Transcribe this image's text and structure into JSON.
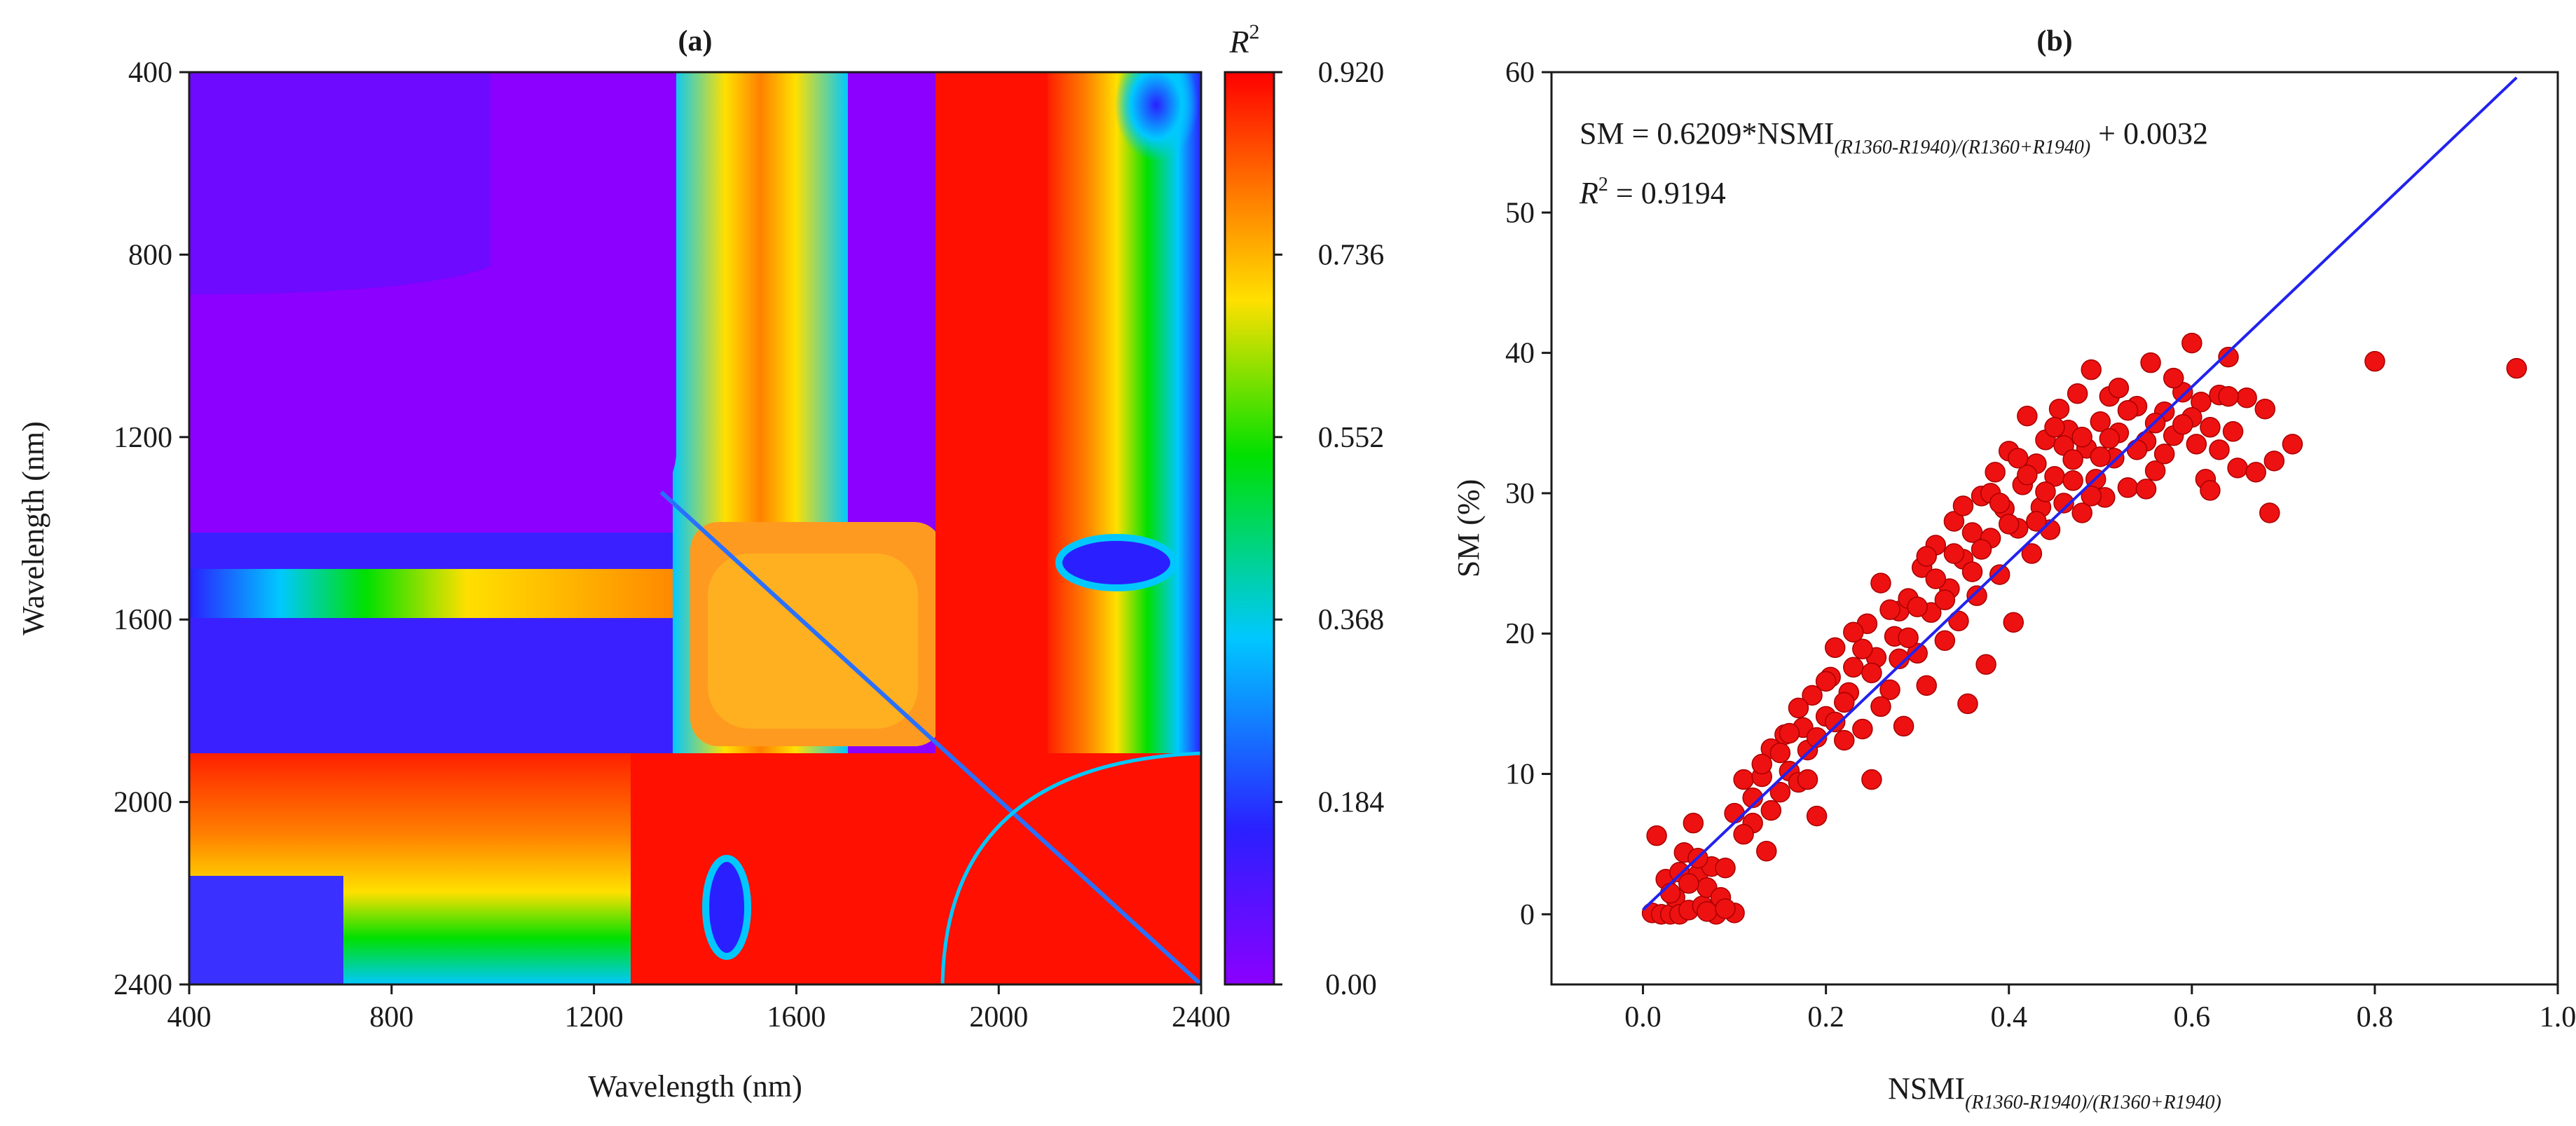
{
  "chart_data": [
    {
      "type": "heatmap",
      "panel_label": "a",
      "title": "(a)",
      "xlabel": "Wavelength (nm)",
      "ylabel": "Wavelength (nm)",
      "xlim": [
        400,
        2400
      ],
      "ylim": [
        2400,
        400
      ],
      "xticks": [
        "400",
        "800",
        "1200",
        "1600",
        "2000",
        "2400"
      ],
      "yticks": [
        "400",
        "800",
        "1200",
        "1600",
        "2000",
        "2400"
      ],
      "colorbar": {
        "label": "R",
        "label_sup": "2",
        "min": 0,
        "max": 0.92,
        "ticks": [
          "0.00",
          "0.184",
          "0.368",
          "0.552",
          "0.736",
          "0.920"
        ],
        "colors": [
          "#8b00ff",
          "#2a20ff",
          "#00c8ff",
          "#00e000",
          "#ffe000",
          "#ff8000",
          "#ff0000"
        ]
      },
      "description_values": {
        "best_band_pair_nm": [
          1360,
          1940
        ],
        "max_r2": 0.92
      }
    },
    {
      "type": "scatter",
      "panel_label": "b",
      "title": "(b)",
      "xlabel": "NSMI",
      "xlabel_sub": "(R1360-R1940)/(R1360+R1940)",
      "ylabel": "SM (%)",
      "xlim": [
        -0.1,
        1.0
      ],
      "ylim": [
        -5,
        60
      ],
      "xticks": [
        "0.0",
        "0.2",
        "0.4",
        "0.6",
        "0.8",
        "1.0"
      ],
      "yticks": [
        "0",
        "10",
        "20",
        "30",
        "40",
        "50",
        "60"
      ],
      "equation_prefix": "SM = 0.6209*NSMI",
      "equation_sub": "(R1360-R1940)/(R1360+R1940)",
      "equation_suffix": " + 0.0032",
      "r2_prefix": "R",
      "r2_sup": "2",
      "r2_value": " = 0.9194",
      "fit": {
        "slope": 62.09,
        "intercept": 0.32,
        "x_range": [
          0.0,
          0.955
        ]
      },
      "point_color": "#ee1111",
      "line_color": "#2222ee",
      "points": [
        [
          0.01,
          0.1
        ],
        [
          0.015,
          5.6
        ],
        [
          0.02,
          0.0
        ],
        [
          0.025,
          2.5
        ],
        [
          0.03,
          0.0
        ],
        [
          0.035,
          1.2
        ],
        [
          0.04,
          3.0
        ],
        [
          0.04,
          0.0
        ],
        [
          0.045,
          4.4
        ],
        [
          0.05,
          0.3
        ],
        [
          0.055,
          6.5
        ],
        [
          0.06,
          2.8
        ],
        [
          0.065,
          0.6
        ],
        [
          0.07,
          1.9
        ],
        [
          0.075,
          3.4
        ],
        [
          0.08,
          0.0
        ],
        [
          0.085,
          1.2
        ],
        [
          0.09,
          3.3
        ],
        [
          0.1,
          0.1
        ],
        [
          0.1,
          7.2
        ],
        [
          0.11,
          9.6
        ],
        [
          0.12,
          6.5
        ],
        [
          0.13,
          9.8
        ],
        [
          0.135,
          4.5
        ],
        [
          0.14,
          11.8
        ],
        [
          0.15,
          8.7
        ],
        [
          0.155,
          12.8
        ],
        [
          0.16,
          10.2
        ],
        [
          0.17,
          9.4
        ],
        [
          0.175,
          13.3
        ],
        [
          0.18,
          11.7
        ],
        [
          0.185,
          15.6
        ],
        [
          0.19,
          7.0
        ],
        [
          0.2,
          14.1
        ],
        [
          0.205,
          16.9
        ],
        [
          0.21,
          19.0
        ],
        [
          0.22,
          12.4
        ],
        [
          0.225,
          15.8
        ],
        [
          0.23,
          17.6
        ],
        [
          0.24,
          13.2
        ],
        [
          0.245,
          20.7
        ],
        [
          0.25,
          9.6
        ],
        [
          0.255,
          18.3
        ],
        [
          0.26,
          23.6
        ],
        [
          0.27,
          16.0
        ],
        [
          0.275,
          19.8
        ],
        [
          0.28,
          21.6
        ],
        [
          0.285,
          13.4
        ],
        [
          0.29,
          22.5
        ],
        [
          0.3,
          18.6
        ],
        [
          0.305,
          24.7
        ],
        [
          0.31,
          16.3
        ],
        [
          0.315,
          21.5
        ],
        [
          0.32,
          26.3
        ],
        [
          0.33,
          19.5
        ],
        [
          0.335,
          23.2
        ],
        [
          0.34,
          28.0
        ],
        [
          0.345,
          20.9
        ],
        [
          0.35,
          25.3
        ],
        [
          0.355,
          15.0
        ],
        [
          0.36,
          27.2
        ],
        [
          0.365,
          22.7
        ],
        [
          0.37,
          29.8
        ],
        [
          0.375,
          17.8
        ],
        [
          0.38,
          26.8
        ],
        [
          0.385,
          31.5
        ],
        [
          0.39,
          24.2
        ],
        [
          0.395,
          28.9
        ],
        [
          0.4,
          33.0
        ],
        [
          0.405,
          20.8
        ],
        [
          0.41,
          27.5
        ],
        [
          0.415,
          30.6
        ],
        [
          0.42,
          35.5
        ],
        [
          0.425,
          25.7
        ],
        [
          0.43,
          32.1
        ],
        [
          0.435,
          29.0
        ],
        [
          0.44,
          33.8
        ],
        [
          0.445,
          27.4
        ],
        [
          0.45,
          31.2
        ],
        [
          0.455,
          36.0
        ],
        [
          0.46,
          29.3
        ],
        [
          0.465,
          34.5
        ],
        [
          0.47,
          30.9
        ],
        [
          0.475,
          37.1
        ],
        [
          0.48,
          28.6
        ],
        [
          0.485,
          33.2
        ],
        [
          0.49,
          38.8
        ],
        [
          0.495,
          31.0
        ],
        [
          0.5,
          35.1
        ],
        [
          0.505,
          29.7
        ],
        [
          0.51,
          36.9
        ],
        [
          0.515,
          32.5
        ],
        [
          0.52,
          34.3
        ],
        [
          0.53,
          30.4
        ],
        [
          0.54,
          36.2
        ],
        [
          0.55,
          33.7
        ],
        [
          0.555,
          39.3
        ],
        [
          0.56,
          31.6
        ],
        [
          0.57,
          35.8
        ],
        [
          0.58,
          34.1
        ],
        [
          0.59,
          37.2
        ],
        [
          0.6,
          40.7
        ],
        [
          0.605,
          33.5
        ],
        [
          0.61,
          36.5
        ],
        [
          0.615,
          31.0
        ],
        [
          0.62,
          30.2
        ],
        [
          0.63,
          37.0
        ],
        [
          0.64,
          39.7
        ],
        [
          0.645,
          34.4
        ],
        [
          0.65,
          31.8
        ],
        [
          0.66,
          36.8
        ],
        [
          0.67,
          31.5
        ],
        [
          0.68,
          36.0
        ],
        [
          0.685,
          28.6
        ],
        [
          0.69,
          32.3
        ],
        [
          0.71,
          33.5
        ],
        [
          0.8,
          39.4
        ],
        [
          0.955,
          38.9
        ],
        [
          0.03,
          1.5
        ],
        [
          0.05,
          2.2
        ],
        [
          0.06,
          4.0
        ],
        [
          0.07,
          0.2
        ],
        [
          0.09,
          0.4
        ],
        [
          0.12,
          8.3
        ],
        [
          0.14,
          7.4
        ],
        [
          0.16,
          12.9
        ],
        [
          0.18,
          9.6
        ],
        [
          0.2,
          16.6
        ],
        [
          0.22,
          15.1
        ],
        [
          0.24,
          18.9
        ],
        [
          0.26,
          14.8
        ],
        [
          0.28,
          18.2
        ],
        [
          0.3,
          21.9
        ],
        [
          0.32,
          23.9
        ],
        [
          0.34,
          25.7
        ],
        [
          0.36,
          24.4
        ],
        [
          0.38,
          30.0
        ],
        [
          0.4,
          27.8
        ],
        [
          0.42,
          31.3
        ],
        [
          0.44,
          30.1
        ],
        [
          0.46,
          33.4
        ],
        [
          0.48,
          34.0
        ],
        [
          0.5,
          32.6
        ],
        [
          0.52,
          37.5
        ],
        [
          0.54,
          33.1
        ],
        [
          0.56,
          35.0
        ],
        [
          0.58,
          38.2
        ],
        [
          0.6,
          35.4
        ],
        [
          0.62,
          34.7
        ],
        [
          0.64,
          36.9
        ],
        [
          0.11,
          5.7
        ],
        [
          0.13,
          10.7
        ],
        [
          0.15,
          11.5
        ],
        [
          0.17,
          14.7
        ],
        [
          0.19,
          12.6
        ],
        [
          0.21,
          13.7
        ],
        [
          0.23,
          20.1
        ],
        [
          0.25,
          17.2
        ],
        [
          0.27,
          21.7
        ],
        [
          0.29,
          19.7
        ],
        [
          0.31,
          25.5
        ],
        [
          0.33,
          22.4
        ],
        [
          0.35,
          29.1
        ],
        [
          0.37,
          26.0
        ],
        [
          0.39,
          29.3
        ],
        [
          0.41,
          32.5
        ],
        [
          0.43,
          28.0
        ],
        [
          0.45,
          34.7
        ],
        [
          0.47,
          32.4
        ],
        [
          0.49,
          29.8
        ],
        [
          0.51,
          33.9
        ],
        [
          0.53,
          35.9
        ],
        [
          0.55,
          30.3
        ],
        [
          0.57,
          32.8
        ],
        [
          0.59,
          34.9
        ],
        [
          0.63,
          33.1
        ]
      ]
    }
  ]
}
